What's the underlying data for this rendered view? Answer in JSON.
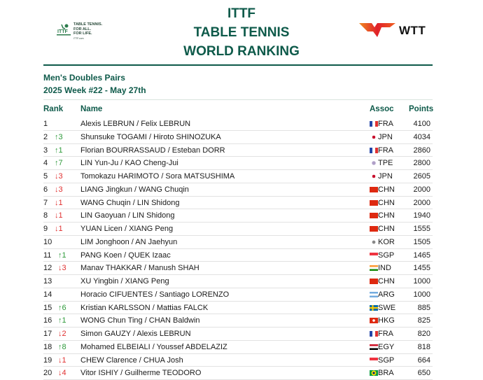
{
  "header": {
    "title_lines": [
      "ITTF",
      "TABLE TENNIS",
      "WORLD RANKING"
    ],
    "ittf_logo_text": [
      "TABLE TENNIS.",
      "FOR ALL.",
      "FOR LIFE.",
      "ITTF.com"
    ],
    "wtt_logo_text": "WTT",
    "brand_color": "#0e5a4a"
  },
  "subtitle": {
    "category": "Men's Doubles Pairs",
    "week": "2025 Week #22 - May 27th"
  },
  "table": {
    "columns": {
      "rank": "Rank",
      "name": "Name",
      "assoc": "Assoc",
      "points": "Points"
    },
    "rows": [
      {
        "rank": "1",
        "move": "",
        "dir": "",
        "name": "Alexis LEBRUN / Felix LEBRUN",
        "assoc": "FRA",
        "points": "4100"
      },
      {
        "rank": "2",
        "move": "↑3",
        "dir": "up",
        "name": "Shunsuke TOGAMI / Hiroto SHINOZUKA",
        "assoc": "JPN",
        "points": "4034"
      },
      {
        "rank": "3",
        "move": "↑1",
        "dir": "up",
        "name": "Florian BOURRASSAUD / Esteban DORR",
        "assoc": "FRA",
        "points": "2860"
      },
      {
        "rank": "4",
        "move": "↑7",
        "dir": "up",
        "name": "LIN Yun-Ju / KAO Cheng-Jui",
        "assoc": "TPE",
        "points": "2800"
      },
      {
        "rank": "5",
        "move": "↓3",
        "dir": "down",
        "name": "Tomokazu HARIMOTO / Sora MATSUSHIMA",
        "assoc": "JPN",
        "points": "2605"
      },
      {
        "rank": "6",
        "move": "↓3",
        "dir": "down",
        "name": "LIANG Jingkun / WANG Chuqin",
        "assoc": "CHN",
        "points": "2000"
      },
      {
        "rank": "7",
        "move": "↓1",
        "dir": "down",
        "name": "WANG Chuqin / LIN Shidong",
        "assoc": "CHN",
        "points": "2000"
      },
      {
        "rank": "8",
        "move": "↓1",
        "dir": "down",
        "name": "LIN Gaoyuan / LIN Shidong",
        "assoc": "CHN",
        "points": "1940"
      },
      {
        "rank": "9",
        "move": "↓1",
        "dir": "down",
        "name": "YUAN Licen / XIANG Peng",
        "assoc": "CHN",
        "points": "1555"
      },
      {
        "rank": "10",
        "move": "",
        "dir": "",
        "name": "LIM Jonghoon / AN Jaehyun",
        "assoc": "KOR",
        "points": "1505"
      },
      {
        "rank": "11",
        "move": "↑1",
        "dir": "up",
        "name": "PANG Koen / QUEK Izaac",
        "assoc": "SGP",
        "points": "1465"
      },
      {
        "rank": "12",
        "move": "↓3",
        "dir": "down",
        "name": "Manav THAKKAR / Manush SHAH",
        "assoc": "IND",
        "points": "1455"
      },
      {
        "rank": "13",
        "move": "",
        "dir": "",
        "name": "XU Yingbin / XIANG Peng",
        "assoc": "CHN",
        "points": "1000"
      },
      {
        "rank": "14",
        "move": "",
        "dir": "",
        "name": "Horacio CIFUENTES / Santiago LORENZO",
        "assoc": "ARG",
        "points": "1000"
      },
      {
        "rank": "15",
        "move": "↑6",
        "dir": "up",
        "name": "Kristian KARLSSON / Mattias FALCK",
        "assoc": "SWE",
        "points": "885"
      },
      {
        "rank": "16",
        "move": "↑1",
        "dir": "up",
        "name": "WONG Chun Ting / CHAN Baldwin",
        "assoc": "HKG",
        "points": "825"
      },
      {
        "rank": "17",
        "move": "↓2",
        "dir": "down",
        "name": "Simon GAUZY / Alexis LEBRUN",
        "assoc": "FRA",
        "points": "820"
      },
      {
        "rank": "18",
        "move": "↑8",
        "dir": "up",
        "name": "Mohamed ELBEIALI / Youssef ABDELAZIZ",
        "assoc": "EGY",
        "points": "818"
      },
      {
        "rank": "19",
        "move": "↓1",
        "dir": "down",
        "name": "CHEW Clarence / CHUA Josh",
        "assoc": "SGP",
        "points": "664"
      },
      {
        "rank": "20",
        "move": "↓4",
        "dir": "down",
        "name": "Vitor ISHIY / Guilherme TEODORO",
        "assoc": "BRA",
        "points": "650"
      }
    ]
  }
}
